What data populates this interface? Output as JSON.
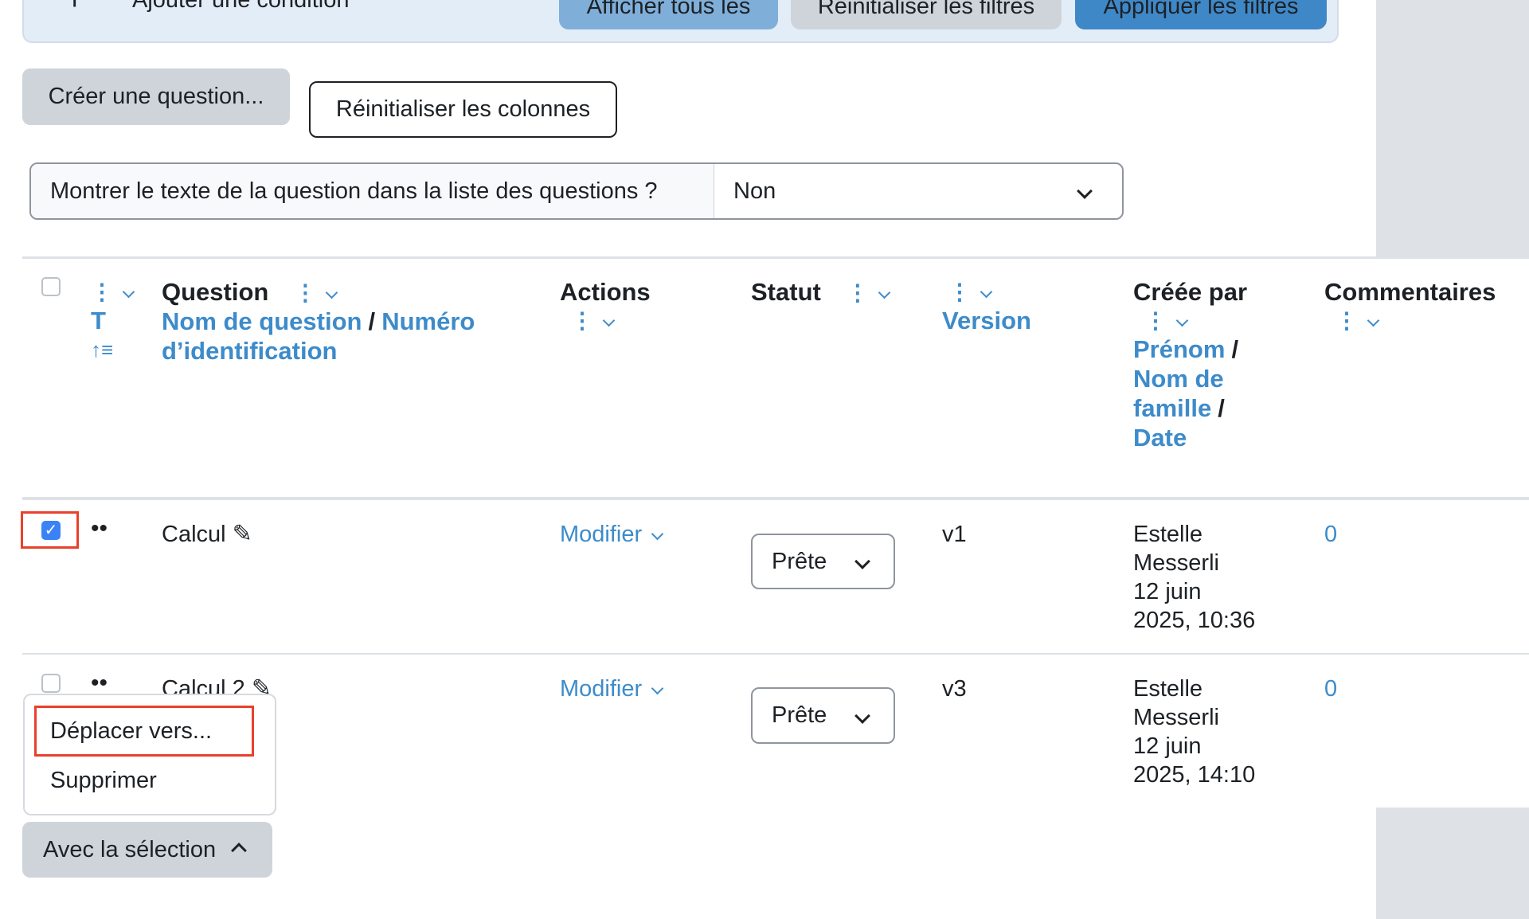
{
  "filters": {
    "add_condition": "Ajouter une condition",
    "show_all": "Afficher tous les",
    "reset_filters": "Réinitialiser les filtres",
    "apply_filters": "Appliquer les filtres"
  },
  "toolbar": {
    "create_question": "Créer une question...",
    "reset_columns": "Réinitialiser les colonnes"
  },
  "show_text": {
    "label": "Montrer le texte de la question dans la liste des questions ?",
    "value": "Non"
  },
  "table": {
    "headers": {
      "sort_t": "T",
      "question": "Question",
      "question_name": "Nom de question",
      "sep": "/",
      "id_number": "Numéro d’identification",
      "actions": "Actions",
      "status": "Statut",
      "version": "Version",
      "created_by": "Créée par",
      "first_name": "Prénom",
      "last_name": "Nom de famille",
      "date": "Date",
      "comments": "Commentaires"
    },
    "rows": [
      {
        "name": "Calcul",
        "checked": true,
        "action": "Modifier",
        "status": "Prête",
        "version": "v1",
        "author1": "Estelle",
        "author2": "Messerli",
        "date1": "12 juin",
        "date2": "2025, 10:36",
        "comments": "0"
      },
      {
        "name": "Calcul 2",
        "checked": false,
        "action": "Modifier",
        "status": "Prête",
        "version": "v3",
        "author1": "Estelle",
        "author2": "Messerli",
        "date1": "12 juin",
        "date2": "2025, 14:10",
        "comments": "0"
      }
    ]
  },
  "bulk_menu": {
    "items": [
      "Déplacer vers...",
      "Supprimer"
    ],
    "button": "Avec la sélection"
  },
  "colors": {
    "accent": "#3d8bca",
    "highlight": "#e8412c",
    "checkbox": "#3b82f6"
  }
}
